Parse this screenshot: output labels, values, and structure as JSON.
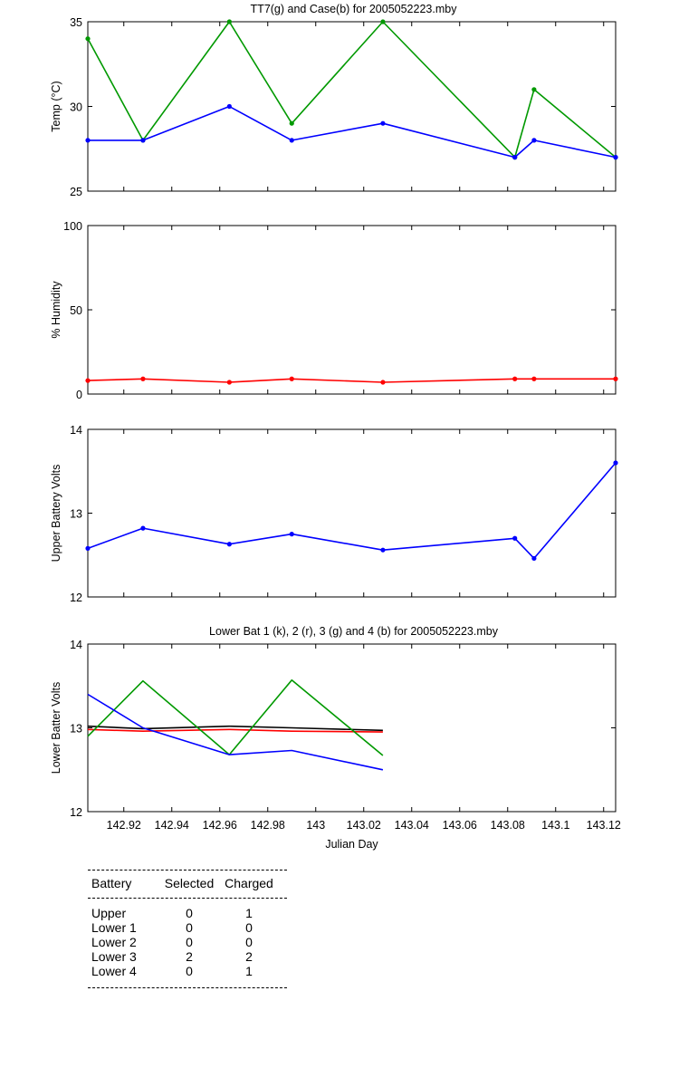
{
  "chart_data": [
    {
      "type": "line",
      "title": "TT7(g) and Case(b) for 2005052223.mby",
      "xlabel": "",
      "ylabel": "Temp  (°C)",
      "xlim": [
        142.905,
        143.125
      ],
      "ylim": [
        25,
        35
      ],
      "yticks": [
        25,
        30,
        35
      ],
      "grid": false,
      "x": [
        142.905,
        142.928,
        142.964,
        142.99,
        143.028,
        143.083,
        143.091,
        143.125
      ],
      "series": [
        {
          "name": "TT7",
          "color": "#009900",
          "values": [
            34,
            28,
            35,
            29,
            35,
            27,
            31,
            27
          ]
        },
        {
          "name": "Case",
          "color": "#0000ff",
          "values": [
            28,
            28,
            30,
            28,
            29,
            27,
            28,
            27
          ]
        }
      ]
    },
    {
      "type": "line",
      "title": "",
      "xlabel": "",
      "ylabel": "% Humidity",
      "xlim": [
        142.905,
        143.125
      ],
      "ylim": [
        0,
        100
      ],
      "yticks": [
        0,
        50,
        100
      ],
      "grid": false,
      "x": [
        142.905,
        142.928,
        142.964,
        142.99,
        143.028,
        143.083,
        143.091,
        143.125
      ],
      "series": [
        {
          "name": "Humidity",
          "color": "#ff0000",
          "values": [
            8,
            9,
            7,
            9,
            7,
            9,
            9,
            9
          ]
        }
      ]
    },
    {
      "type": "line",
      "title": "",
      "xlabel": "",
      "ylabel": "Upper Battery Volts",
      "xlim": [
        142.905,
        143.125
      ],
      "ylim": [
        12,
        14
      ],
      "yticks": [
        12,
        13,
        14
      ],
      "grid": false,
      "x": [
        142.905,
        142.928,
        142.964,
        142.99,
        143.028,
        143.083,
        143.091,
        143.125
      ],
      "series": [
        {
          "name": "Upper",
          "color": "#0000ff",
          "values": [
            12.58,
            12.82,
            12.63,
            12.75,
            12.56,
            12.7,
            12.46,
            13.6
          ]
        }
      ]
    },
    {
      "type": "line",
      "title": "Lower Bat 1 (k), 2 (r), 3 (g) and 4 (b) for 2005052223.mby",
      "xlabel": "Julian Day",
      "ylabel": "Lower Batter Volts",
      "xlim": [
        142.905,
        143.125
      ],
      "ylim": [
        12,
        14
      ],
      "yticks": [
        12,
        13,
        14
      ],
      "xticks": [
        142.92,
        142.94,
        142.96,
        142.98,
        143,
        143.02,
        143.04,
        143.06,
        143.08,
        143.1,
        143.12
      ],
      "xticklabels": [
        "142.92",
        "142.94",
        "142.96",
        "142.98",
        "143",
        "143.02",
        "143.04",
        "143.06",
        "143.08",
        "143.1",
        "143.12"
      ],
      "grid": false,
      "x": [
        142.905,
        142.928,
        142.964,
        142.99,
        143.028
      ],
      "series": [
        {
          "name": "Lower Bat 1",
          "color": "#000000",
          "values": [
            13.02,
            12.99,
            13.02,
            13.0,
            12.97
          ]
        },
        {
          "name": "Lower Bat 2",
          "color": "#ff0000",
          "values": [
            12.98,
            12.96,
            12.98,
            12.96,
            12.95
          ]
        },
        {
          "name": "Lower Bat 3",
          "color": "#009900",
          "values": [
            12.9,
            13.56,
            12.68,
            13.57,
            12.67
          ]
        },
        {
          "name": "Lower Bat 4",
          "color": "#0000ff",
          "values": [
            13.4,
            13.0,
            12.68,
            12.73,
            12.5
          ]
        }
      ]
    }
  ],
  "battery_table": {
    "headers": [
      "Battery",
      "Selected",
      "Charged"
    ],
    "rows": [
      [
        "Upper",
        "0",
        "1"
      ],
      [
        "Lower 1",
        "0",
        "0"
      ],
      [
        "Lower 2",
        "0",
        "0"
      ],
      [
        "Lower 3",
        "2",
        "2"
      ],
      [
        "Lower 4",
        "0",
        "1"
      ]
    ]
  }
}
